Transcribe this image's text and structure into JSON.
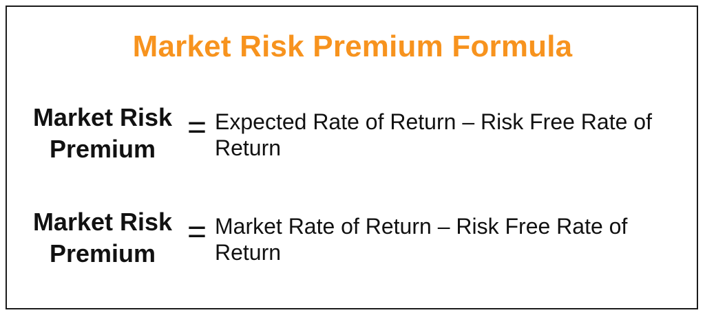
{
  "title": "Market Risk Premium Formula",
  "formulas": [
    {
      "lhs_line1": "Market Risk",
      "lhs_line2": "Premium",
      "equals": "=",
      "rhs_line1": "Expected Rate of Return – Risk Free Rate of",
      "rhs_line2": "Return"
    },
    {
      "lhs_line1": "Market Risk",
      "lhs_line2": "Premium",
      "equals": "=",
      "rhs_line1": "Market Rate of Return – Risk Free Rate of",
      "rhs_line2": "Return"
    }
  ],
  "colors": {
    "title": "#f7931e",
    "text": "#111111",
    "border": "#1a1a1a"
  }
}
